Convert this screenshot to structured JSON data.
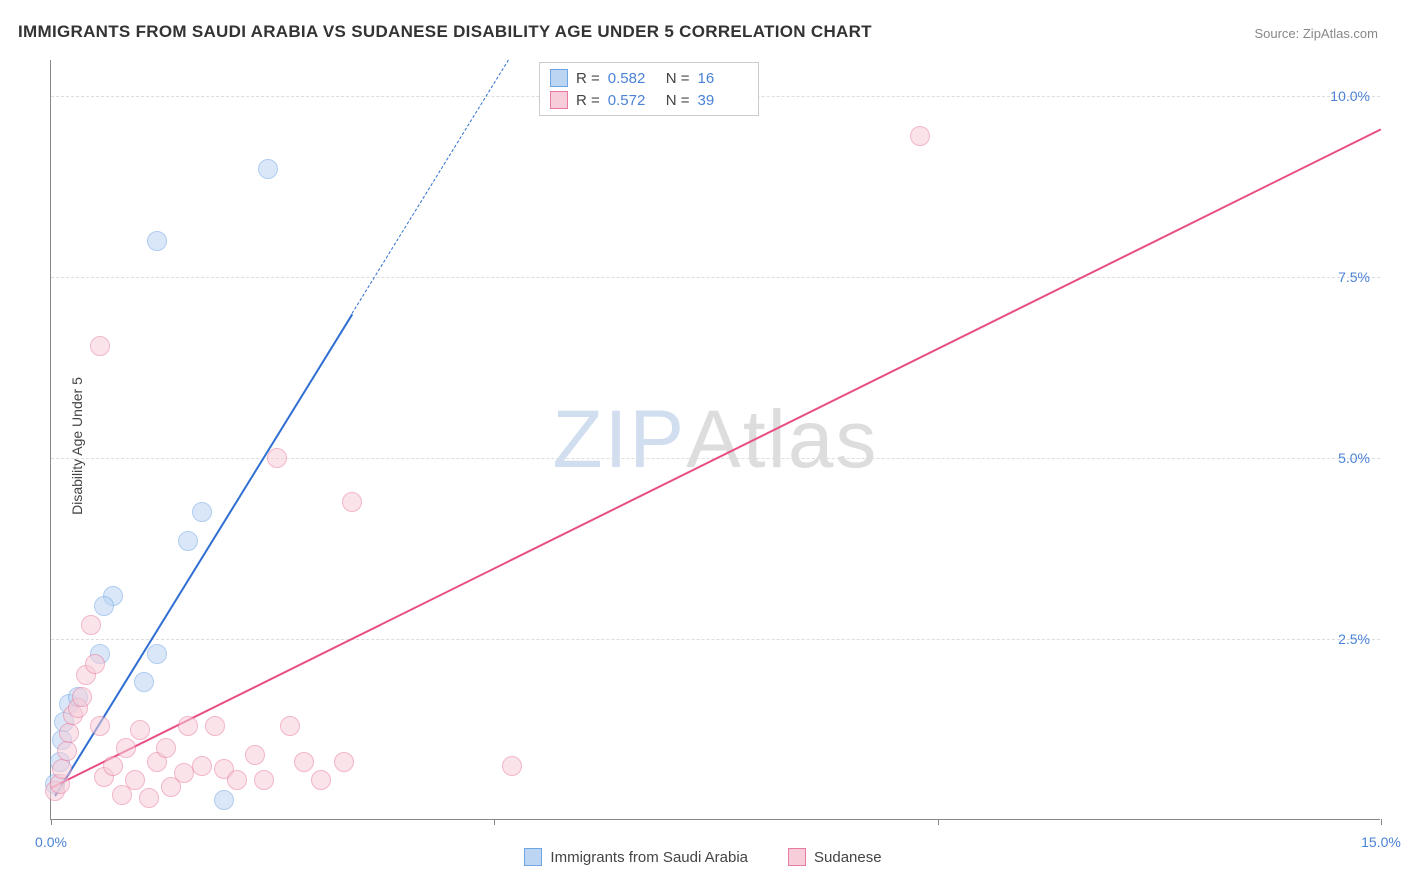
{
  "title": "IMMIGRANTS FROM SAUDI ARABIA VS SUDANESE DISABILITY AGE UNDER 5 CORRELATION CHART",
  "source_label": "Source: ",
  "source_name": "ZipAtlas.com",
  "ylabel": "Disability Age Under 5",
  "watermark": {
    "part1": "ZIP",
    "part2": "Atlas"
  },
  "chart": {
    "type": "scatter",
    "background_color": "#ffffff",
    "grid_color": "#dddddd",
    "axis_color": "#888888",
    "xlim": [
      0,
      15
    ],
    "ylim": [
      0,
      10.5
    ],
    "x_ticks": [
      0,
      5,
      10,
      15
    ],
    "x_tick_labels": [
      "0.0%",
      "",
      "",
      "15.0%"
    ],
    "y_ticks": [
      2.5,
      5.0,
      7.5,
      10.0
    ],
    "y_tick_labels": [
      "2.5%",
      "5.0%",
      "7.5%",
      "10.0%"
    ],
    "marker_radius": 10,
    "marker_opacity": 0.55,
    "series": [
      {
        "id": "saudi",
        "label": "Immigrants from Saudi Arabia",
        "color_fill": "#bcd5f3",
        "color_stroke": "#6fa4e5",
        "R": "0.582",
        "N": "16",
        "trend": {
          "x1": 0.05,
          "y1": 0.35,
          "x2": 3.4,
          "y2": 7.0,
          "solid_color": "#2f6fd1",
          "dash_extend_to_y": 10.5,
          "line_width": 2
        },
        "points": [
          [
            0.05,
            0.5
          ],
          [
            0.1,
            0.8
          ],
          [
            0.12,
            1.1
          ],
          [
            0.15,
            1.35
          ],
          [
            0.2,
            1.6
          ],
          [
            0.3,
            1.7
          ],
          [
            0.55,
            2.3
          ],
          [
            0.7,
            3.1
          ],
          [
            0.6,
            2.95
          ],
          [
            1.2,
            2.3
          ],
          [
            1.05,
            1.9
          ],
          [
            1.7,
            4.25
          ],
          [
            1.55,
            3.85
          ],
          [
            1.2,
            8.0
          ],
          [
            2.45,
            9.0
          ],
          [
            1.95,
            0.28
          ]
        ]
      },
      {
        "id": "sudanese",
        "label": "Sudanese",
        "color_fill": "#f6cdd8",
        "color_stroke": "#e87ba0",
        "R": "0.572",
        "N": "39",
        "trend": {
          "x1": 0.0,
          "y1": 0.45,
          "x2": 15.0,
          "y2": 9.55,
          "solid_color": "#e84e85",
          "line_width": 2
        },
        "points": [
          [
            0.05,
            0.4
          ],
          [
            0.1,
            0.5
          ],
          [
            0.12,
            0.7
          ],
          [
            0.18,
            0.95
          ],
          [
            0.2,
            1.2
          ],
          [
            0.25,
            1.45
          ],
          [
            0.3,
            1.55
          ],
          [
            0.35,
            1.7
          ],
          [
            0.4,
            2.0
          ],
          [
            0.45,
            2.7
          ],
          [
            0.5,
            2.15
          ],
          [
            0.55,
            1.3
          ],
          [
            0.6,
            0.6
          ],
          [
            0.7,
            0.75
          ],
          [
            0.8,
            0.35
          ],
          [
            0.85,
            1.0
          ],
          [
            0.95,
            0.55
          ],
          [
            1.0,
            1.25
          ],
          [
            1.1,
            0.3
          ],
          [
            1.2,
            0.8
          ],
          [
            1.3,
            1.0
          ],
          [
            1.35,
            0.45
          ],
          [
            1.5,
            0.65
          ],
          [
            1.55,
            1.3
          ],
          [
            1.7,
            0.75
          ],
          [
            1.85,
            1.3
          ],
          [
            1.95,
            0.7
          ],
          [
            2.1,
            0.55
          ],
          [
            2.3,
            0.9
          ],
          [
            2.4,
            0.55
          ],
          [
            2.7,
            1.3
          ],
          [
            2.85,
            0.8
          ],
          [
            3.05,
            0.55
          ],
          [
            3.3,
            0.8
          ],
          [
            0.55,
            6.55
          ],
          [
            2.55,
            5.0
          ],
          [
            3.4,
            4.4
          ],
          [
            5.2,
            0.75
          ],
          [
            9.8,
            9.45
          ]
        ]
      }
    ]
  },
  "stats_box": {
    "r_label": "R =",
    "n_label": "N ="
  }
}
